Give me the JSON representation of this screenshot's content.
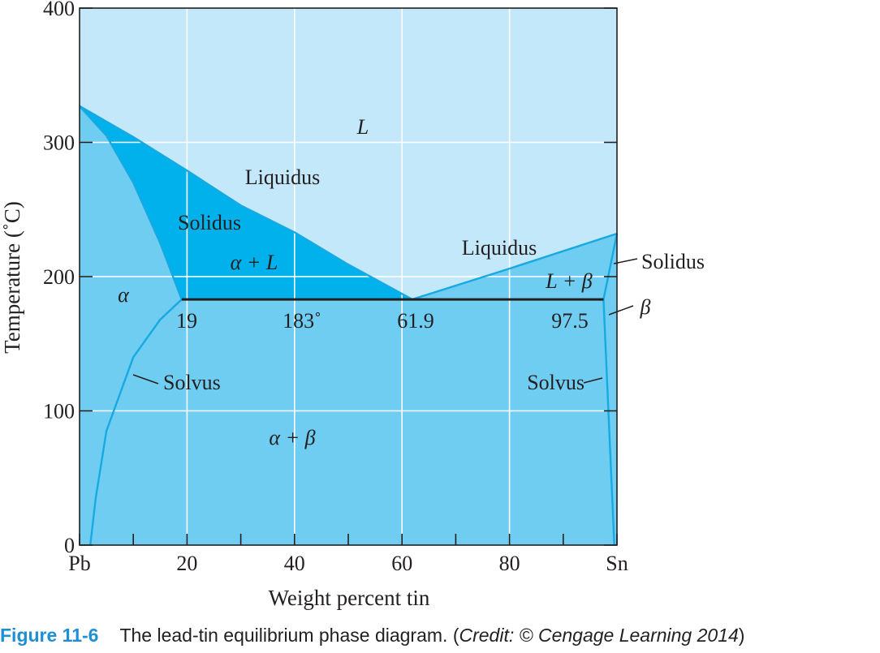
{
  "chart_data": {
    "type": "phase-diagram",
    "xlabel": "Weight percent tin",
    "ylabel": "Temperature (˚C)",
    "xlim": [
      0,
      100
    ],
    "ylim": [
      0,
      400
    ],
    "x_ticks": [
      {
        "value": 0,
        "label": "Pb"
      },
      {
        "value": 20,
        "label": "20"
      },
      {
        "value": 40,
        "label": "40"
      },
      {
        "value": 60,
        "label": "60"
      },
      {
        "value": 80,
        "label": "80"
      },
      {
        "value": 100,
        "label": "Sn"
      }
    ],
    "x_minor_ticks": [
      10,
      30,
      50,
      70,
      90
    ],
    "y_ticks": [
      {
        "value": 0,
        "label": "0"
      },
      {
        "value": 100,
        "label": "100"
      },
      {
        "value": 200,
        "label": "200"
      },
      {
        "value": 300,
        "label": "300"
      },
      {
        "value": 400,
        "label": "400"
      }
    ],
    "grid": true,
    "colors": {
      "liquid": "#c3e8fa",
      "solid": "#6fcdf2",
      "two_phase": "#00b1ec",
      "boundary": "#17a9e1",
      "eutectic": "#231f20",
      "grid": "#ffffff"
    },
    "lines": [
      {
        "name": "Liquidus",
        "points": [
          [
            0,
            327
          ],
          [
            10,
            304
          ],
          [
            20,
            279
          ],
          [
            30,
            253
          ],
          [
            40,
            233
          ],
          [
            50,
            209
          ],
          [
            61.9,
            183
          ]
        ]
      },
      {
        "name": "Liquidus",
        "points": [
          [
            61.9,
            183
          ],
          [
            80,
            206
          ],
          [
            100,
            232
          ]
        ]
      },
      {
        "name": "Solidus",
        "points": [
          [
            0,
            327
          ],
          [
            5,
            305
          ],
          [
            10,
            270
          ],
          [
            15,
            225
          ],
          [
            19,
            183
          ]
        ]
      },
      {
        "name": "Solidus",
        "points": [
          [
            97.5,
            183
          ],
          [
            100,
            232
          ]
        ]
      },
      {
        "name": "Solvus",
        "points": [
          [
            19,
            183
          ],
          [
            15,
            168
          ],
          [
            10,
            140
          ],
          [
            5,
            85
          ],
          [
            3,
            35
          ],
          [
            2,
            0
          ]
        ]
      },
      {
        "name": "Solvus",
        "points": [
          [
            97.5,
            183
          ],
          [
            99.5,
            0
          ]
        ]
      }
    ],
    "eutectic_isotherm": {
      "temperature": 183,
      "x_start": 19,
      "x_end": 97.5
    },
    "region_labels": {
      "L": "L",
      "alpha": "α",
      "alpha_L": "α + L",
      "L_beta": "L + β",
      "alpha_beta": "α + β",
      "beta": "β"
    },
    "boundary_labels": {
      "liquidus_left": "Liquidus",
      "liquidus_right": "Liquidus",
      "solidus_left": "Solidus",
      "solidus_right": "Solidus",
      "solvus_left": "Solvus",
      "solvus_right": "Solvus"
    },
    "point_labels": {
      "c19": "19",
      "c183": "183˚",
      "c619": "61.9",
      "c975": "97.5"
    }
  },
  "caption": {
    "figure_number": "Figure 11-6",
    "text": "The lead-tin equilibrium phase diagram. (",
    "credit": "Credit: © Cengage Learning 2014",
    "close": ")"
  }
}
